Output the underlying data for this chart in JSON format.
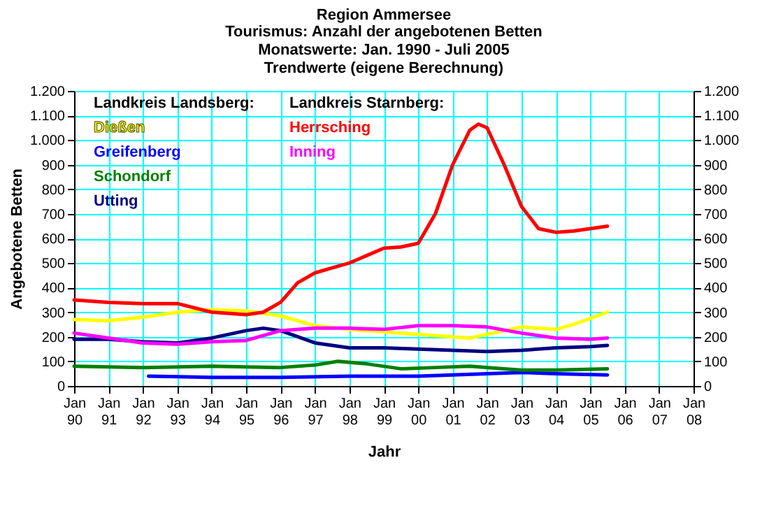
{
  "chart_data": {
    "type": "line",
    "title": "Region Ammersee",
    "subtitle": "Tourismus: Anzahl der angebotenen Betten\nMonatswerte: Jan. 1990 - Juli 2005\nTrendwerte (eigene Berechnung)",
    "xlabel": "Jahr",
    "ylabel": "Angebotene Betten",
    "annotations": [
      "Landkreis Landsberg:",
      "Landkreis Starnberg:"
    ],
    "series": [
      {
        "name": "Dießen",
        "color": "#ffff00",
        "x": [
          "1990-01",
          "1991-01",
          "1992-01",
          "1993-01",
          "1994-01",
          "1995-01",
          "1996-01",
          "1997-01",
          "1998-01",
          "1999-01",
          "2000-01",
          "2001-01",
          "2001-07",
          "2002-01",
          "2003-01",
          "2004-01",
          "2004-07",
          "2005-01",
          "2005-07"
        ],
        "values": [
          270,
          265,
          280,
          300,
          310,
          305,
          285,
          245,
          230,
          220,
          210,
          200,
          195,
          210,
          240,
          230,
          250,
          275,
          300
        ]
      },
      {
        "name": "Greifenberg",
        "color": "#0000ff",
        "x": [
          "1992-03",
          "1994-01",
          "1996-01",
          "1998-01",
          "2000-01",
          "2001-01",
          "2002-01",
          "2003-01",
          "2004-01",
          "2005-07"
        ],
        "values": [
          40,
          35,
          35,
          40,
          40,
          45,
          50,
          55,
          50,
          45
        ]
      },
      {
        "name": "Schondorf",
        "color": "#008000",
        "x": [
          "1990-01",
          "1992-01",
          "1994-01",
          "1996-01",
          "1997-01",
          "1997-09",
          "1998-07",
          "1999-07",
          "2000-07",
          "2001-07",
          "2002-07",
          "2003-01",
          "2004-01",
          "2005-07"
        ],
        "values": [
          80,
          75,
          80,
          75,
          85,
          100,
          90,
          70,
          75,
          80,
          70,
          65,
          65,
          70
        ]
      },
      {
        "name": "Utting",
        "color": "#000080",
        "x": [
          "1990-01",
          "1991-01",
          "1992-01",
          "1993-01",
          "1994-01",
          "1995-01",
          "1995-07",
          "1996-01",
          "1997-01",
          "1998-01",
          "1999-01",
          "2000-01",
          "2001-01",
          "2002-01",
          "2003-01",
          "2004-01",
          "2005-01",
          "2005-07"
        ],
        "values": [
          190,
          190,
          180,
          175,
          195,
          225,
          235,
          225,
          175,
          155,
          155,
          150,
          145,
          140,
          145,
          155,
          160,
          165
        ]
      },
      {
        "name": "Herrsching",
        "color": "#ff0000",
        "x": [
          "1990-01",
          "1991-01",
          "1992-01",
          "1993-01",
          "1994-01",
          "1995-01",
          "1995-07",
          "1996-01",
          "1996-07",
          "1997-01",
          "1997-07",
          "1998-01",
          "1998-07",
          "1999-01",
          "1999-07",
          "2000-01",
          "2000-07",
          "2001-01",
          "2001-07",
          "2001-10",
          "2002-01",
          "2002-07",
          "2003-01",
          "2003-07",
          "2004-01",
          "2004-07",
          "2005-01",
          "2005-07"
        ],
        "values": [
          350,
          340,
          335,
          335,
          300,
          290,
          300,
          340,
          420,
          460,
          480,
          500,
          530,
          560,
          565,
          580,
          700,
          900,
          1040,
          1065,
          1050,
          900,
          730,
          640,
          625,
          630,
          640,
          650
        ]
      },
      {
        "name": "Inning",
        "color": "#ff00ff",
        "x": [
          "1990-01",
          "1991-01",
          "1992-01",
          "1993-01",
          "1994-01",
          "1995-01",
          "1996-01",
          "1997-01",
          "1998-01",
          "1999-01",
          "2000-01",
          "2001-01",
          "2002-01",
          "2003-01",
          "2004-01",
          "2005-01",
          "2005-07"
        ],
        "values": [
          215,
          195,
          175,
          170,
          180,
          185,
          225,
          235,
          235,
          230,
          245,
          245,
          240,
          215,
          195,
          190,
          195
        ]
      }
    ],
    "xlim": [
      "1990-01",
      "2008-01"
    ],
    "xticks": [
      {
        "value": "1990-01",
        "label": "Jan 90"
      },
      {
        "value": "1991-01",
        "label": "Jan 91"
      },
      {
        "value": "1992-01",
        "label": "Jan 92"
      },
      {
        "value": "1993-01",
        "label": "Jan 93"
      },
      {
        "value": "1994-01",
        "label": "Jan 94"
      },
      {
        "value": "1995-01",
        "label": "Jan 95"
      },
      {
        "value": "1996-01",
        "label": "Jan 96"
      },
      {
        "value": "1997-01",
        "label": "Jan 97"
      },
      {
        "value": "1998-01",
        "label": "Jan 98"
      },
      {
        "value": "1999-01",
        "label": "Jan 99"
      },
      {
        "value": "2000-01",
        "label": "Jan 00"
      },
      {
        "value": "2001-01",
        "label": "Jan 01"
      },
      {
        "value": "2002-01",
        "label": "Jan 02"
      },
      {
        "value": "2003-01",
        "label": "Jan 03"
      },
      {
        "value": "2004-01",
        "label": "Jan 04"
      },
      {
        "value": "2005-01",
        "label": "Jan 05"
      },
      {
        "value": "2006-01",
        "label": "Jan 06"
      },
      {
        "value": "2007-01",
        "label": "Jan 07"
      },
      {
        "value": "2008-01",
        "label": "Jan 08"
      }
    ],
    "ylim": [
      0,
      1200
    ],
    "yticks": [
      0,
      100,
      200,
      300,
      400,
      500,
      600,
      700,
      800,
      900,
      {
        "value": 1000,
        "label": "1.000"
      },
      {
        "value": 1100,
        "label": "1.100"
      },
      {
        "value": 1200,
        "label": "1.200"
      }
    ],
    "y2lim": [
      0,
      1200
    ],
    "y2ticks": [
      0,
      100,
      200,
      300,
      400,
      500,
      600,
      700,
      800,
      900,
      {
        "value": 1000,
        "label": "1.000"
      },
      {
        "value": 1100,
        "label": "1.100"
      },
      {
        "value": 1200,
        "label": "1.200"
      }
    ],
    "grid": true,
    "legend": "top left",
    "marker": "none",
    "line_style": "solid"
  }
}
